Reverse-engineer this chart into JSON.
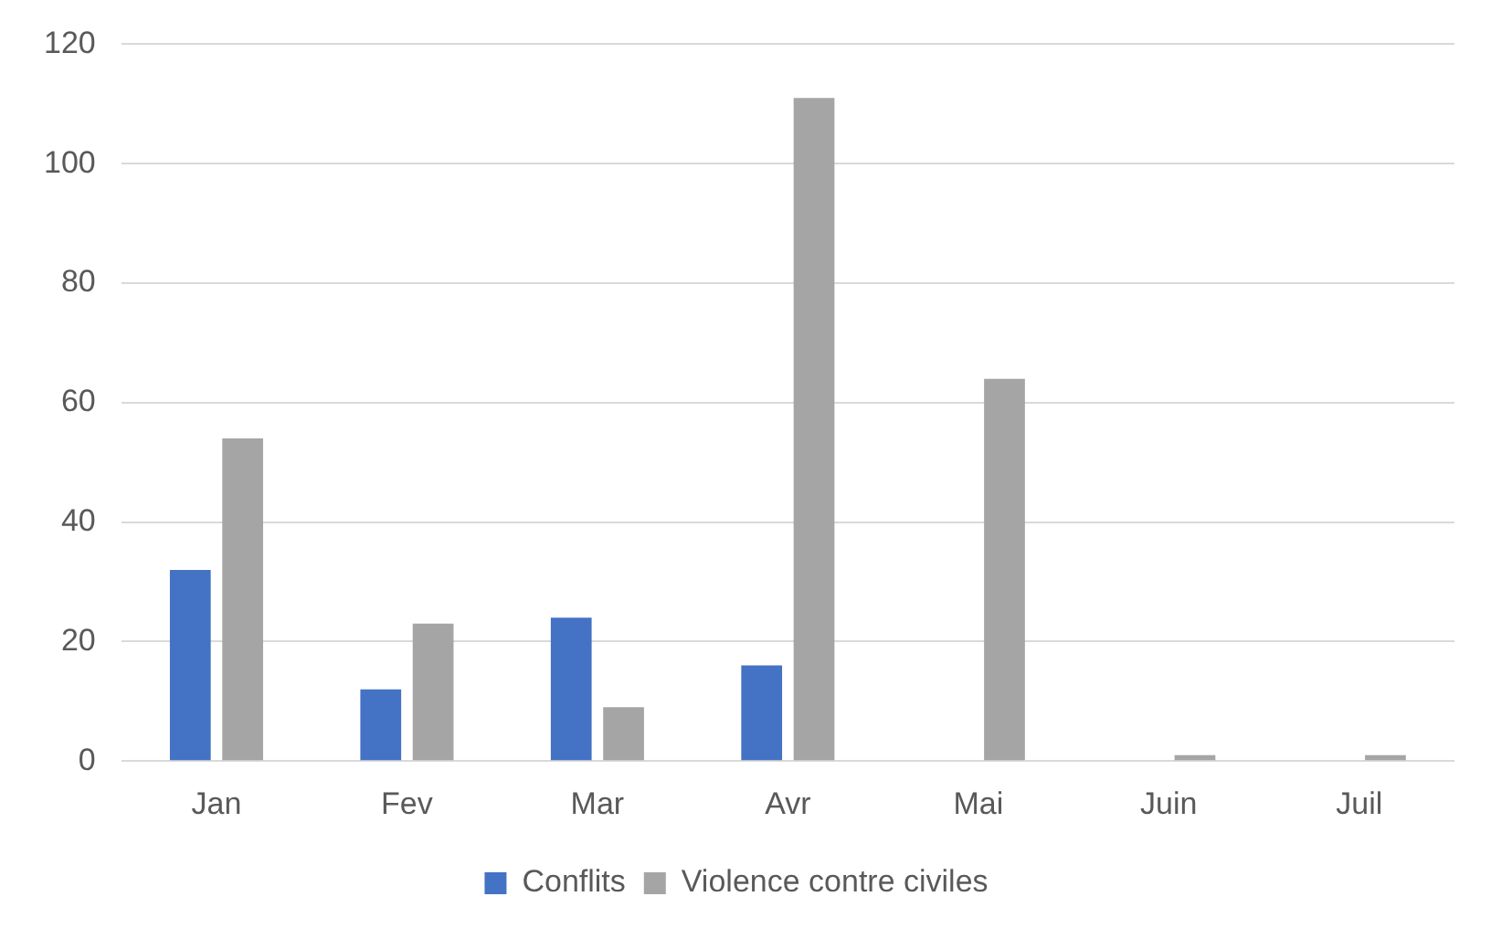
{
  "chart_data": {
    "type": "bar",
    "categories": [
      "Jan",
      "Fev",
      "Mar",
      "Avr",
      "Mai",
      "Juin",
      "Juil"
    ],
    "series": [
      {
        "name": "Conflits",
        "color": "#4472c4",
        "values": [
          32,
          12,
          24,
          16,
          0,
          0,
          0
        ]
      },
      {
        "name": "Violence contre civiles",
        "color": "#a5a5a5",
        "values": [
          54,
          23,
          9,
          111,
          64,
          1,
          1
        ]
      }
    ],
    "ylim": [
      0,
      120
    ],
    "yticks": [
      0,
      20,
      40,
      60,
      80,
      100,
      120
    ],
    "grid": "y",
    "legend": "bottom"
  }
}
